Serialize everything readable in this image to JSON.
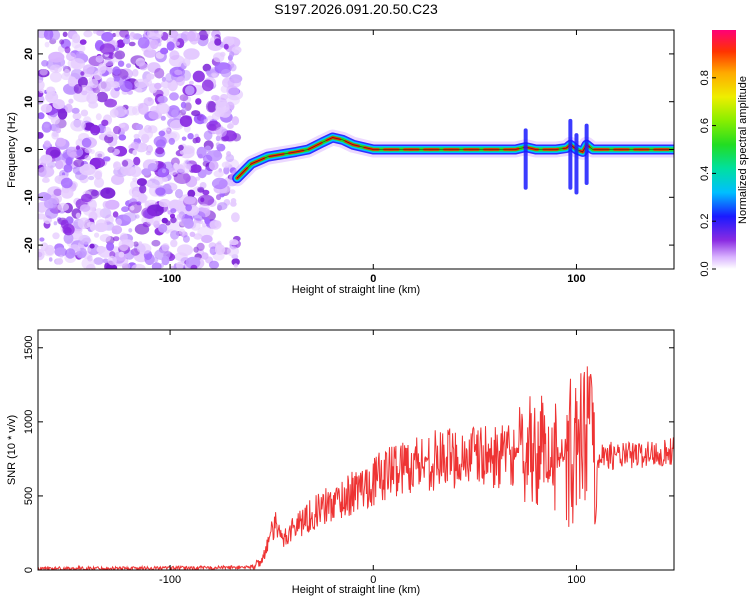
{
  "title": "S197.2026.091.20.50.C23",
  "chart_data": [
    {
      "type": "heatmap",
      "description_role": "spectrogram",
      "xlabel": "Height of straight line (km)",
      "ylabel": "Frequency (Hz)",
      "xlim": [
        -165,
        148
      ],
      "ylim": [
        -25,
        25
      ],
      "xticks": [
        -100,
        0,
        100
      ],
      "xtick_labels": [
        "-100",
        "0",
        "100"
      ],
      "yticks": [
        -20,
        -10,
        0,
        10,
        20
      ],
      "ytick_labels": [
        "-20",
        "-10",
        "0",
        "10",
        "20"
      ],
      "noise_region_x": [
        -165,
        -67
      ],
      "ridge_points": {
        "x": [
          -67,
          -60,
          -52,
          -45,
          -38,
          -32,
          -25,
          -20,
          -15,
          -10,
          -5,
          0,
          10,
          20,
          30,
          40,
          50,
          60,
          70,
          75,
          80,
          85,
          90,
          95,
          97,
          100,
          103,
          105,
          108,
          120,
          130,
          140,
          148
        ],
        "freq": [
          -6,
          -3,
          -1.5,
          -1,
          -0.5,
          0,
          1.5,
          2.5,
          2,
          1,
          0.5,
          0,
          0,
          0,
          0,
          0,
          0,
          0,
          0,
          0.5,
          0,
          0,
          0,
          0.3,
          1,
          0,
          -0.5,
          1,
          0,
          0,
          0,
          0,
          0
        ]
      },
      "colorbar": {
        "label": "Normalized spectral amplitude",
        "range": [
          0,
          1
        ],
        "ticks": [
          0.0,
          0.2,
          0.4,
          0.6,
          0.8
        ],
        "tick_labels": [
          "0.0",
          "0.2",
          "0.4",
          "0.6",
          "0.8"
        ]
      }
    },
    {
      "type": "line",
      "xlabel": "Height of straight line (km)",
      "ylabel": "SNR (10 * v/v)",
      "xlim": [
        -165,
        148
      ],
      "ylim": [
        0,
        1620
      ],
      "xticks": [
        -100,
        0,
        100
      ],
      "xtick_labels": [
        "-100",
        "0",
        "100"
      ],
      "yticks": [
        0,
        500,
        1000,
        1500
      ],
      "ytick_labels": [
        "0",
        "500",
        "1000",
        "1500"
      ],
      "series": [
        {
          "name": "SNR",
          "color": "#ee3333",
          "x": [
            -165,
            -120,
            -80,
            -60,
            -55,
            -50,
            -48,
            -45,
            -40,
            -30,
            -20,
            -10,
            0,
            10,
            20,
            30,
            40,
            50,
            60,
            70,
            75,
            80,
            85,
            90,
            95,
            100,
            102,
            105,
            110,
            120,
            130,
            140,
            148
          ],
          "y": [
            10,
            12,
            15,
            20,
            60,
            250,
            300,
            200,
            280,
            380,
            450,
            520,
            600,
            680,
            720,
            740,
            760,
            770,
            760,
            780,
            800,
            820,
            790,
            780,
            800,
            760,
            820,
            900,
            780,
            770,
            775,
            790,
            800
          ]
        }
      ]
    }
  ]
}
